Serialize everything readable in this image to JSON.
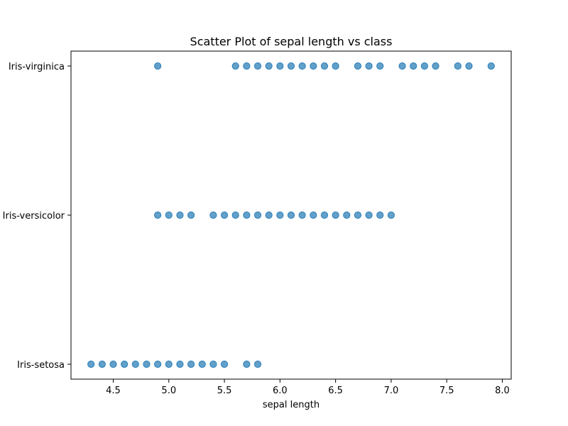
{
  "chart_data": {
    "type": "scatter",
    "title": "Scatter Plot of sepal length vs class",
    "xlabel": "sepal length",
    "ylabel": "",
    "xlim": [
      4.12,
      8.08
    ],
    "x_ticks": [
      4.5,
      5.0,
      5.5,
      6.0,
      6.5,
      7.0,
      7.5,
      8.0
    ],
    "x_tick_labels": [
      "4.5",
      "5.0",
      "5.5",
      "6.0",
      "6.5",
      "7.0",
      "7.5",
      "8.0"
    ],
    "categories": [
      "Iris-setosa",
      "Iris-versicolor",
      "Iris-virginica"
    ],
    "grid": false,
    "marker_color": "#1f77b4",
    "marker_alpha": 0.7,
    "points": [
      {
        "x": 4.3,
        "y": "Iris-setosa"
      },
      {
        "x": 4.4,
        "y": "Iris-setosa"
      },
      {
        "x": 4.5,
        "y": "Iris-setosa"
      },
      {
        "x": 4.6,
        "y": "Iris-setosa"
      },
      {
        "x": 4.7,
        "y": "Iris-setosa"
      },
      {
        "x": 4.8,
        "y": "Iris-setosa"
      },
      {
        "x": 4.9,
        "y": "Iris-setosa"
      },
      {
        "x": 5.0,
        "y": "Iris-setosa"
      },
      {
        "x": 5.1,
        "y": "Iris-setosa"
      },
      {
        "x": 5.2,
        "y": "Iris-setosa"
      },
      {
        "x": 5.3,
        "y": "Iris-setosa"
      },
      {
        "x": 5.4,
        "y": "Iris-setosa"
      },
      {
        "x": 5.5,
        "y": "Iris-setosa"
      },
      {
        "x": 5.7,
        "y": "Iris-setosa"
      },
      {
        "x": 5.8,
        "y": "Iris-setosa"
      },
      {
        "x": 4.9,
        "y": "Iris-versicolor"
      },
      {
        "x": 5.0,
        "y": "Iris-versicolor"
      },
      {
        "x": 5.1,
        "y": "Iris-versicolor"
      },
      {
        "x": 5.2,
        "y": "Iris-versicolor"
      },
      {
        "x": 5.4,
        "y": "Iris-versicolor"
      },
      {
        "x": 5.5,
        "y": "Iris-versicolor"
      },
      {
        "x": 5.6,
        "y": "Iris-versicolor"
      },
      {
        "x": 5.7,
        "y": "Iris-versicolor"
      },
      {
        "x": 5.8,
        "y": "Iris-versicolor"
      },
      {
        "x": 5.9,
        "y": "Iris-versicolor"
      },
      {
        "x": 6.0,
        "y": "Iris-versicolor"
      },
      {
        "x": 6.1,
        "y": "Iris-versicolor"
      },
      {
        "x": 6.2,
        "y": "Iris-versicolor"
      },
      {
        "x": 6.3,
        "y": "Iris-versicolor"
      },
      {
        "x": 6.4,
        "y": "Iris-versicolor"
      },
      {
        "x": 6.5,
        "y": "Iris-versicolor"
      },
      {
        "x": 6.6,
        "y": "Iris-versicolor"
      },
      {
        "x": 6.7,
        "y": "Iris-versicolor"
      },
      {
        "x": 6.8,
        "y": "Iris-versicolor"
      },
      {
        "x": 6.9,
        "y": "Iris-versicolor"
      },
      {
        "x": 7.0,
        "y": "Iris-versicolor"
      },
      {
        "x": 4.9,
        "y": "Iris-virginica"
      },
      {
        "x": 5.6,
        "y": "Iris-virginica"
      },
      {
        "x": 5.7,
        "y": "Iris-virginica"
      },
      {
        "x": 5.8,
        "y": "Iris-virginica"
      },
      {
        "x": 5.9,
        "y": "Iris-virginica"
      },
      {
        "x": 6.0,
        "y": "Iris-virginica"
      },
      {
        "x": 6.1,
        "y": "Iris-virginica"
      },
      {
        "x": 6.2,
        "y": "Iris-virginica"
      },
      {
        "x": 6.3,
        "y": "Iris-virginica"
      },
      {
        "x": 6.4,
        "y": "Iris-virginica"
      },
      {
        "x": 6.5,
        "y": "Iris-virginica"
      },
      {
        "x": 6.7,
        "y": "Iris-virginica"
      },
      {
        "x": 6.8,
        "y": "Iris-virginica"
      },
      {
        "x": 6.9,
        "y": "Iris-virginica"
      },
      {
        "x": 7.1,
        "y": "Iris-virginica"
      },
      {
        "x": 7.2,
        "y": "Iris-virginica"
      },
      {
        "x": 7.3,
        "y": "Iris-virginica"
      },
      {
        "x": 7.4,
        "y": "Iris-virginica"
      },
      {
        "x": 7.6,
        "y": "Iris-virginica"
      },
      {
        "x": 7.7,
        "y": "Iris-virginica"
      },
      {
        "x": 7.9,
        "y": "Iris-virginica"
      }
    ]
  }
}
